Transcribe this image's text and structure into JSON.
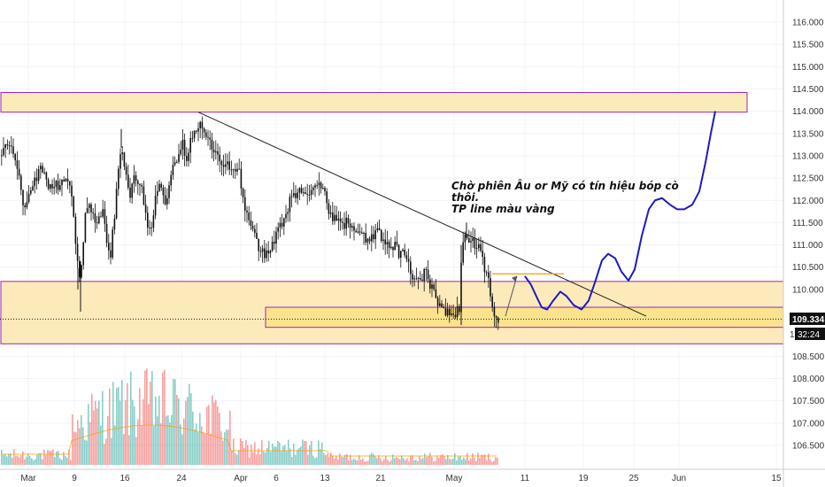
{
  "chart_data": {
    "type": "candlestick",
    "title": "",
    "x_ticks": [
      "Mar",
      "9",
      "16",
      "24",
      "Apr",
      "6",
      "13",
      "21",
      "May",
      "11",
      "19",
      "25",
      "Jun",
      "15"
    ],
    "y_ticks": [
      "116.000",
      "115.500",
      "115.000",
      "114.500",
      "114.000",
      "113.500",
      "113.000",
      "112.500",
      "112.000",
      "111.500",
      "111.000",
      "110.500",
      "110.000",
      "109.500",
      "109.000",
      "108.500",
      "108.000",
      "107.500",
      "107.000",
      "106.500"
    ],
    "ylim": [
      106.2,
      116.35
    ],
    "last_price_label": "109.334",
    "countdown_label": "32:24",
    "partial_price_label": "1",
    "current_price": 109.334,
    "zones": [
      {
        "name": "resistance-zone",
        "top": 114.42,
        "bottom": 113.98,
        "color": "#fde8b4"
      },
      {
        "name": "support-zone",
        "top": 110.18,
        "bottom": 108.78,
        "color": "#fde8b4"
      },
      {
        "name": "entry-zone",
        "top": 109.6,
        "bottom": 109.15,
        "color": "#fbe28a"
      }
    ],
    "trendline": {
      "from": [
        224,
        113.98
      ],
      "to": [
        730,
        109.4
      ]
    },
    "projection_path": [
      [
        593,
        110.3
      ],
      [
        600,
        110.1
      ],
      [
        607,
        109.8
      ],
      [
        612,
        109.6
      ],
      [
        618,
        109.55
      ],
      [
        625,
        109.75
      ],
      [
        633,
        109.95
      ],
      [
        640,
        109.85
      ],
      [
        648,
        109.65
      ],
      [
        657,
        109.55
      ],
      [
        665,
        109.75
      ],
      [
        672,
        110.15
      ],
      [
        680,
        110.65
      ],
      [
        687,
        110.8
      ],
      [
        695,
        110.7
      ],
      [
        702,
        110.4
      ],
      [
        710,
        110.2
      ],
      [
        717,
        110.45
      ],
      [
        725,
        111.2
      ],
      [
        733,
        111.8
      ],
      [
        740,
        112.0
      ],
      [
        748,
        112.05
      ],
      [
        757,
        111.9
      ],
      [
        765,
        111.8
      ],
      [
        773,
        111.8
      ],
      [
        782,
        111.9
      ],
      [
        790,
        112.2
      ],
      [
        797,
        112.85
      ],
      [
        803,
        113.5
      ],
      [
        808,
        114.0
      ]
    ],
    "annotation": [
      "Chờ phiên Âu or Mỹ có tín hiệu bóp cò",
      "thôi.",
      "TP line màu vàng"
    ],
    "colors": {
      "up": "#26a69a",
      "down": "#ef5350",
      "candle": "#111111",
      "projection": "#1d1bbf",
      "zone_border": "#9c27b0",
      "tp_line": "#ff9800",
      "price_tag": "#111111"
    }
  }
}
